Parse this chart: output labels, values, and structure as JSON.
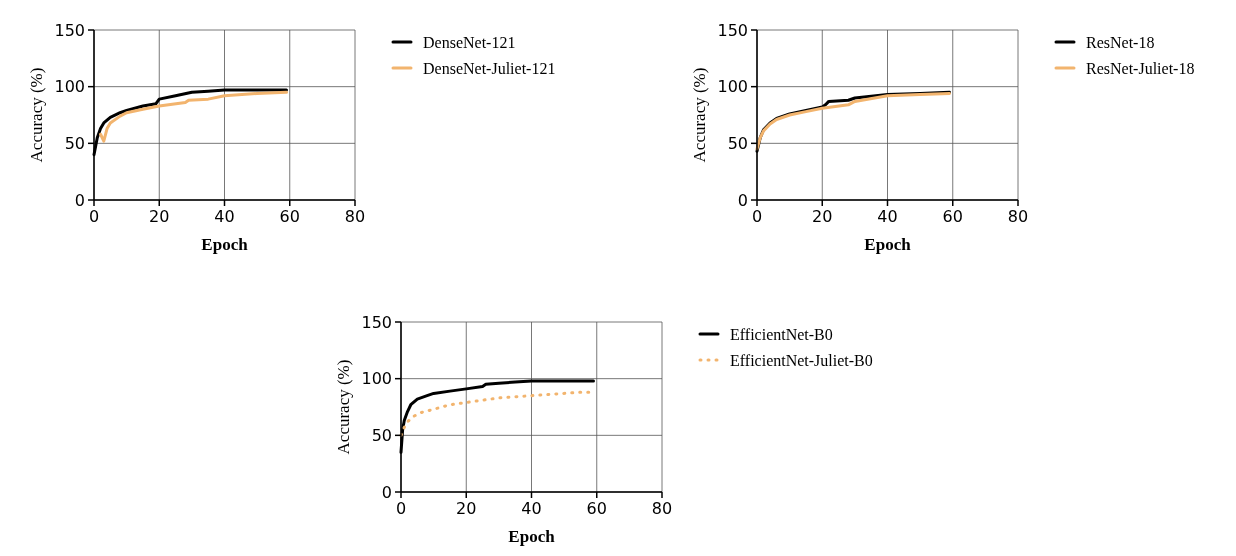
{
  "chart_data": [
    {
      "type": "line",
      "xlabel": "Epoch",
      "ylabel": "Accuracy (%)",
      "xlim": [
        0,
        80
      ],
      "xticks": [
        0,
        20,
        40,
        60,
        80
      ],
      "ylim": [
        0,
        150
      ],
      "yticks": [
        0,
        50,
        100,
        150
      ],
      "grid": true,
      "legend": "right",
      "series": [
        {
          "name": "DenseNet-121",
          "color": "#000000",
          "x": [
            0,
            1,
            2,
            3,
            5,
            8,
            10,
            15,
            19,
            20,
            25,
            30,
            35,
            40,
            50,
            59
          ],
          "values": [
            40,
            55,
            63,
            68,
            73,
            77,
            79,
            83,
            85,
            89,
            92,
            95,
            96,
            97,
            97,
            97
          ]
        },
        {
          "name": "DenseNet-Juliet-121",
          "color": "#f2b46e",
          "x": [
            2,
            3,
            4,
            5,
            8,
            10,
            15,
            20,
            28,
            29,
            35,
            40,
            50,
            59
          ],
          "values": [
            58,
            52,
            63,
            68,
            74,
            77,
            80,
            83,
            86,
            88,
            89,
            92,
            94,
            95
          ]
        }
      ]
    },
    {
      "type": "line",
      "xlabel": "Epoch",
      "ylabel": "Accuracy (%)",
      "xlim": [
        0,
        80
      ],
      "xticks": [
        0,
        20,
        40,
        60,
        80
      ],
      "ylim": [
        0,
        150
      ],
      "yticks": [
        0,
        50,
        100,
        150
      ],
      "grid": true,
      "legend": "right",
      "series": [
        {
          "name": "ResNet-18",
          "color": "#000000",
          "x": [
            0,
            1,
            2,
            4,
            6,
            10,
            15,
            20,
            21,
            22,
            28,
            30,
            40,
            50,
            59
          ],
          "values": [
            43,
            55,
            62,
            68,
            72,
            76,
            79,
            82,
            84,
            87,
            88,
            90,
            93,
            94,
            95
          ]
        },
        {
          "name": "ResNet-Juliet-18",
          "color": "#f2b46e",
          "x": [
            0,
            1,
            2,
            4,
            6,
            10,
            15,
            20,
            28,
            30,
            40,
            50,
            59
          ],
          "values": [
            45,
            55,
            61,
            67,
            71,
            75,
            78,
            81,
            84,
            87,
            92,
            93,
            94
          ]
        }
      ]
    },
    {
      "type": "line",
      "xlabel": "Epoch",
      "ylabel": "Accuracy (%)",
      "xlim": [
        0,
        80
      ],
      "xticks": [
        0,
        20,
        40,
        60,
        80
      ],
      "ylim": [
        0,
        150
      ],
      "yticks": [
        0,
        50,
        100,
        150
      ],
      "grid": true,
      "legend": "right",
      "series": [
        {
          "name": "EfficientNet-B0",
          "color": "#000000",
          "x": [
            0,
            0.5,
            1,
            2,
            3,
            5,
            8,
            10,
            15,
            20,
            25,
            26,
            30,
            35,
            40,
            50,
            59
          ],
          "values": [
            35,
            55,
            63,
            71,
            77,
            82,
            85,
            87,
            89,
            91,
            93,
            95,
            96,
            97,
            98,
            98,
            98
          ]
        },
        {
          "name": "EfficientNet-Juliet-B0",
          "color": "#f2b46e",
          "line_style": "dotted",
          "x": [
            0,
            1,
            2,
            4,
            6,
            10,
            15,
            20,
            25,
            30,
            35,
            40,
            45,
            50,
            55,
            59
          ],
          "values": [
            50,
            57,
            62,
            67,
            70,
            73,
            77,
            79,
            81,
            83,
            84,
            85,
            86,
            87,
            88,
            88
          ]
        }
      ]
    }
  ]
}
